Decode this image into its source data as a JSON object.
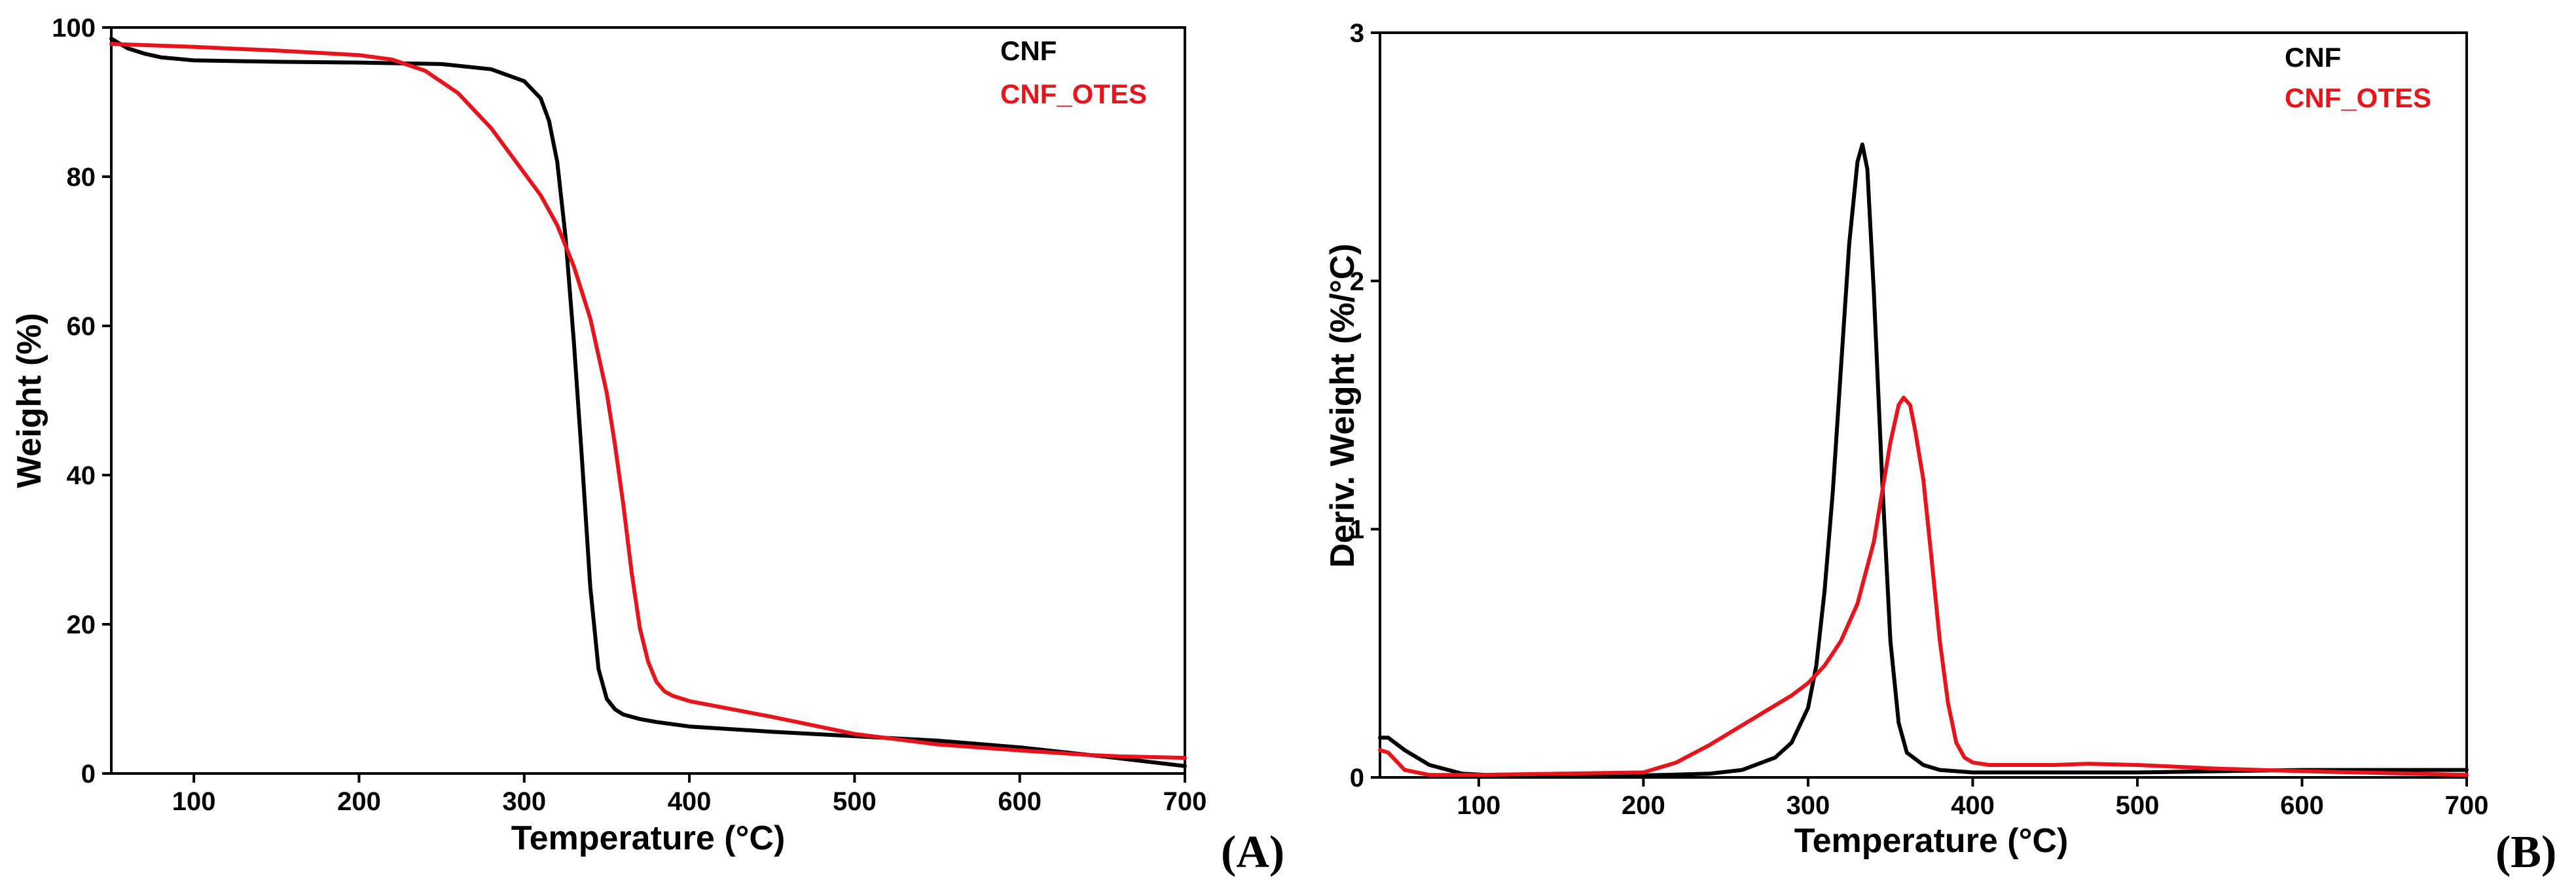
{
  "chart_data": [
    {
      "type": "line",
      "panel_label": "(A)",
      "xlabel": "Temperature (°C)",
      "ylabel": "Weight (%)",
      "xlim": [
        50,
        700
      ],
      "ylim": [
        0,
        100
      ],
      "xticks": [
        100,
        200,
        300,
        400,
        500,
        600,
        700
      ],
      "yticks": [
        0,
        20,
        40,
        60,
        80,
        100
      ],
      "legend_position": "top-right",
      "series": [
        {
          "name": "CNF",
          "color": "#000000",
          "x": [
            50,
            60,
            70,
            80,
            100,
            150,
            200,
            250,
            280,
            300,
            310,
            315,
            320,
            325,
            330,
            335,
            340,
            345,
            350,
            355,
            360,
            370,
            380,
            400,
            450,
            500,
            550,
            600,
            650,
            700
          ],
          "y": [
            98.5,
            97.2,
            96.5,
            96.0,
            95.6,
            95.4,
            95.3,
            95.1,
            94.4,
            92.8,
            90.5,
            87.5,
            82.0,
            72.0,
            58.0,
            42.0,
            25.0,
            14.0,
            10.0,
            8.6,
            7.9,
            7.3,
            6.9,
            6.3,
            5.6,
            5.0,
            4.4,
            3.5,
            2.3,
            1.0
          ]
        },
        {
          "name": "CNF_OTES",
          "color": "#e8141c",
          "x": [
            50,
            100,
            150,
            200,
            220,
            240,
            260,
            280,
            300,
            310,
            320,
            330,
            340,
            350,
            355,
            360,
            365,
            370,
            375,
            380,
            385,
            390,
            400,
            450,
            500,
            550,
            600,
            640,
            660,
            700
          ],
          "y": [
            97.8,
            97.4,
            96.9,
            96.3,
            95.7,
            94.2,
            91.2,
            86.5,
            80.5,
            77.5,
            73.5,
            68.0,
            61.0,
            51.0,
            44.0,
            36.0,
            27.0,
            19.5,
            15.0,
            12.3,
            11.0,
            10.4,
            9.7,
            7.6,
            5.3,
            3.9,
            3.1,
            2.5,
            2.3,
            2.1
          ]
        }
      ]
    },
    {
      "type": "line",
      "panel_label": "(B)",
      "xlabel": "Temperature (°C)",
      "ylabel": "Deriv. Weight (%/°C)",
      "xlim": [
        40,
        700
      ],
      "ylim": [
        0,
        3
      ],
      "xticks": [
        100,
        200,
        300,
        400,
        500,
        600,
        700
      ],
      "yticks": [
        0,
        1,
        2,
        3
      ],
      "legend_position": "top-right",
      "series": [
        {
          "name": "CNF",
          "color": "#000000",
          "x": [
            40,
            45,
            55,
            70,
            90,
            110,
            150,
            200,
            240,
            260,
            280,
            290,
            300,
            305,
            310,
            315,
            320,
            325,
            330,
            333,
            336,
            340,
            345,
            350,
            355,
            360,
            370,
            380,
            400,
            450,
            500,
            600,
            700
          ],
          "y": [
            0.16,
            0.16,
            0.11,
            0.05,
            0.015,
            0.008,
            0.008,
            0.008,
            0.015,
            0.03,
            0.08,
            0.14,
            0.28,
            0.45,
            0.75,
            1.15,
            1.65,
            2.15,
            2.48,
            2.55,
            2.45,
            1.95,
            1.2,
            0.55,
            0.22,
            0.1,
            0.05,
            0.03,
            0.02,
            0.02,
            0.02,
            0.03,
            0.03
          ]
        },
        {
          "name": "CNF_OTES",
          "color": "#e8141c",
          "x": [
            40,
            45,
            55,
            70,
            100,
            150,
            200,
            220,
            240,
            260,
            280,
            290,
            300,
            310,
            320,
            330,
            340,
            345,
            350,
            355,
            358,
            362,
            365,
            370,
            375,
            380,
            385,
            390,
            395,
            400,
            410,
            450,
            470,
            500,
            550,
            600,
            700
          ],
          "y": [
            0.11,
            0.1,
            0.03,
            0.01,
            0.01,
            0.015,
            0.02,
            0.06,
            0.13,
            0.21,
            0.29,
            0.33,
            0.38,
            0.45,
            0.55,
            0.7,
            0.95,
            1.15,
            1.35,
            1.5,
            1.53,
            1.5,
            1.4,
            1.2,
            0.88,
            0.55,
            0.3,
            0.14,
            0.08,
            0.06,
            0.05,
            0.05,
            0.055,
            0.05,
            0.035,
            0.025,
            0.01
          ]
        }
      ]
    }
  ]
}
